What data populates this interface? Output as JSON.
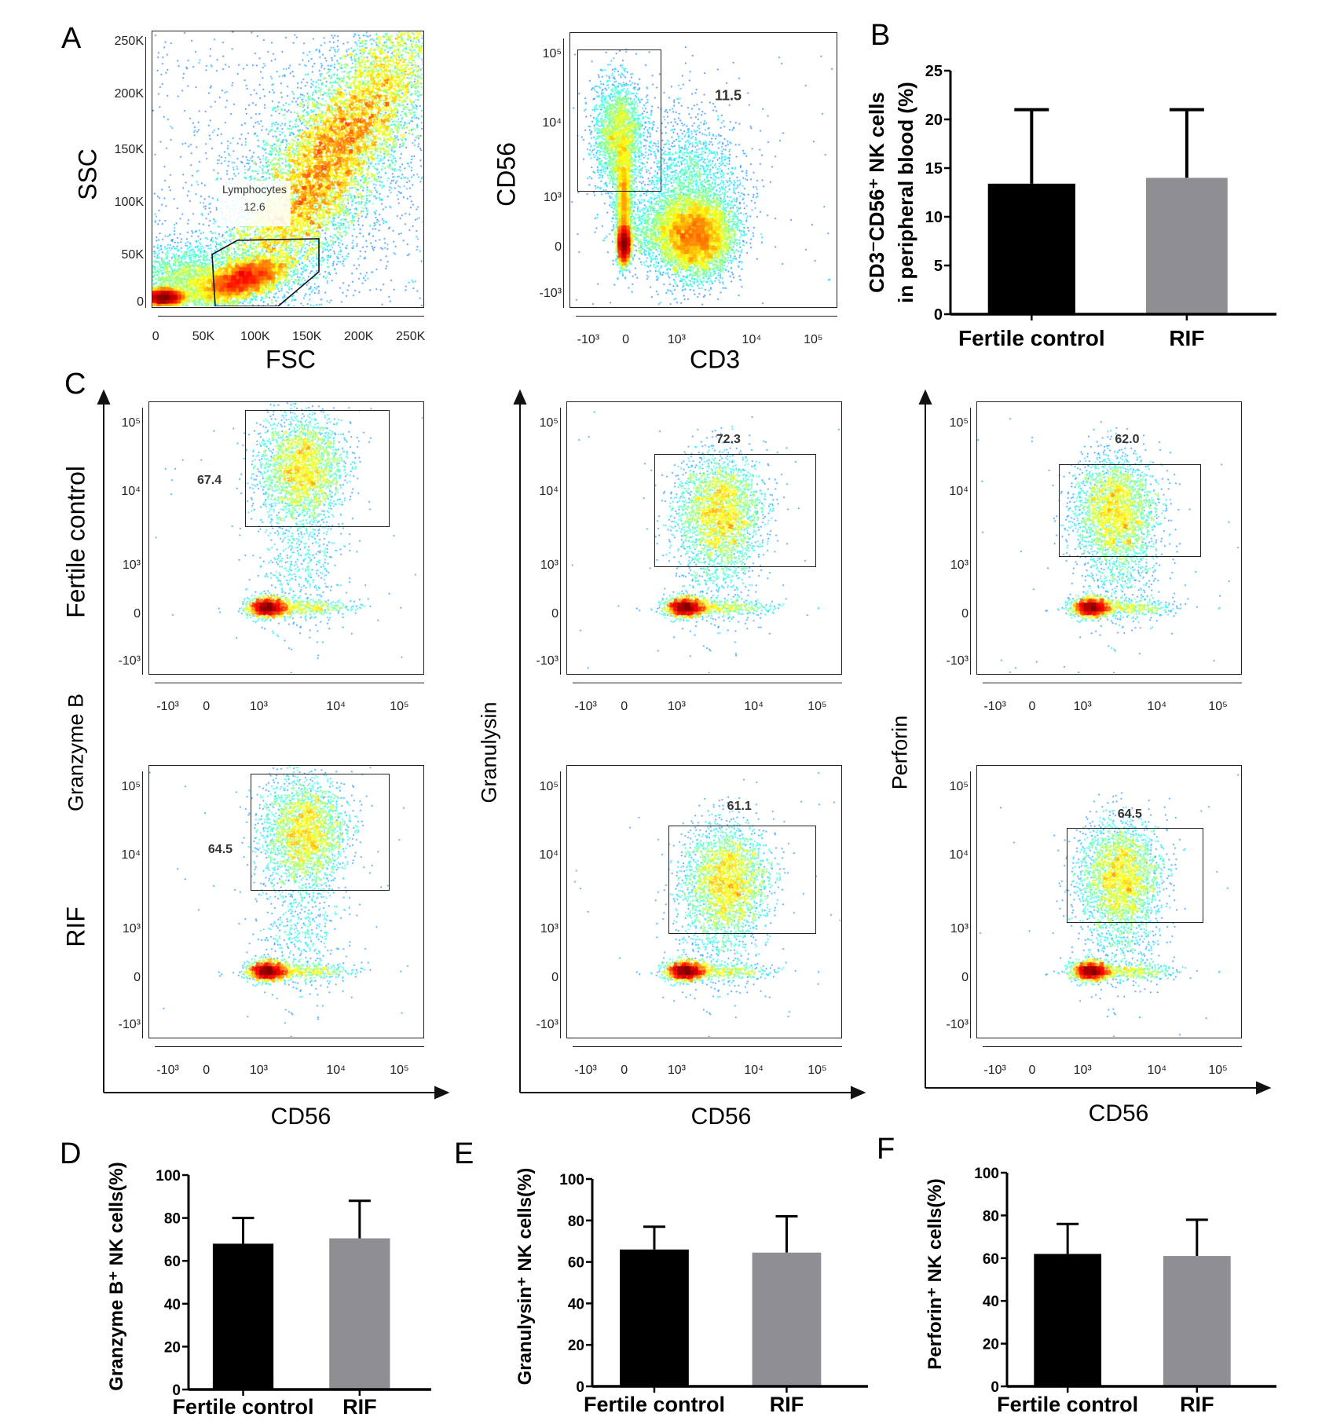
{
  "panel_labels": {
    "A": "A",
    "B": "B",
    "C": "C",
    "D": "D",
    "E": "E",
    "F": "F"
  },
  "flow_panels": {
    "a_fsc_ssc": {
      "xlabel": "FSC",
      "ylabel": "SSC",
      "x_ticks": [
        "0",
        "50K",
        "100K",
        "150K",
        "200K",
        "250K"
      ],
      "y_ticks": [
        "0",
        "50K",
        "100K",
        "150K",
        "200K",
        "250K"
      ],
      "gate_name": "Lymphocytes",
      "gate_value": "12.6"
    },
    "a_cd3_cd56": {
      "xlabel": "CD3",
      "ylabel": "CD56",
      "x_ticks": [
        "-10³",
        "0",
        "10³",
        "10⁴",
        "10⁵"
      ],
      "y_ticks": [
        "-10³",
        "0",
        "10³",
        "10⁴",
        "10⁵"
      ],
      "gate_value": "11.5"
    },
    "c": {
      "row_labels": [
        "Fertile control",
        "RIF"
      ],
      "column_ylabels": [
        "Granzyme B",
        "Granulysin",
        "Perforin"
      ],
      "xlabel": "CD56",
      "x_ticks": [
        "-10³",
        "0",
        "10³",
        "10⁴",
        "10⁵"
      ],
      "y_ticks": [
        "-10³",
        "0",
        "10³",
        "10⁴",
        "10⁵"
      ],
      "gates": [
        [
          "67.4",
          "64.5"
        ],
        [
          "72.3",
          "61.1"
        ],
        [
          "62.0",
          "64.5"
        ]
      ]
    },
    "density_colormap": [
      "#00008f",
      "#0000ff",
      "#00ffff",
      "#7fff7f",
      "#ffff00",
      "#ff0000"
    ]
  },
  "chart_data": [
    {
      "panel": "B",
      "type": "bar",
      "categories": [
        "Fertile control",
        "RIF"
      ],
      "values": [
        13.4,
        14.0
      ],
      "error_upper": [
        21.0,
        21.0
      ],
      "colors": [
        "#000000",
        "#8e8e93"
      ],
      "ylabel": [
        "CD3⁻CD56⁺ NK cells",
        "in peripheral blood (%)"
      ],
      "ylim": [
        0,
        25
      ],
      "y_ticks": [
        0,
        5,
        10,
        15,
        20,
        25
      ],
      "grid": false
    },
    {
      "panel": "D",
      "type": "bar",
      "categories": [
        "Fertile control",
        "RIF"
      ],
      "values": [
        68,
        70.5
      ],
      "error_upper": [
        80,
        88
      ],
      "colors": [
        "#000000",
        "#8e8e93"
      ],
      "ylabel": [
        "Granzyme B⁺ NK cells(%)"
      ],
      "ylim": [
        0,
        100
      ],
      "y_ticks": [
        0,
        20,
        40,
        60,
        80,
        100
      ],
      "grid": false
    },
    {
      "panel": "E",
      "type": "bar",
      "categories": [
        "Fertile control",
        "RIF"
      ],
      "values": [
        66,
        64.5
      ],
      "error_upper": [
        77,
        82
      ],
      "colors": [
        "#000000",
        "#8e8e93"
      ],
      "ylabel": [
        "Granulysin⁺ NK cells(%)"
      ],
      "ylim": [
        0,
        100
      ],
      "y_ticks": [
        0,
        20,
        40,
        60,
        80,
        100
      ],
      "grid": false
    },
    {
      "panel": "F",
      "type": "bar",
      "categories": [
        "Fertile control",
        "RIF"
      ],
      "values": [
        62,
        61
      ],
      "error_upper": [
        76,
        78
      ],
      "colors": [
        "#000000",
        "#8e8e93"
      ],
      "ylabel": [
        "Perforin⁺ NK cells(%)"
      ],
      "ylim": [
        0,
        100
      ],
      "y_ticks": [
        0,
        20,
        40,
        60,
        80,
        100
      ],
      "grid": false
    }
  ]
}
